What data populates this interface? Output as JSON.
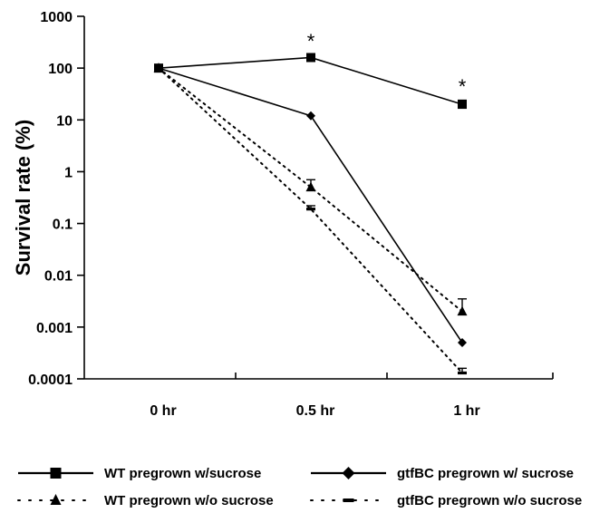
{
  "chart_data": {
    "type": "line",
    "ylabel": "Survival rate (%)",
    "xlabel": "",
    "yscale": "log",
    "ylim": [
      0.0001,
      1000
    ],
    "y_ticks": [
      1000,
      100,
      10,
      1,
      0.1,
      0.01,
      0.001,
      0.0001
    ],
    "y_tick_labels": [
      "1000",
      "100",
      "10",
      "1",
      "0.1",
      "0.01",
      "0.001",
      "0.0001"
    ],
    "categories": [
      "0 hr",
      "0.5 hr",
      "1 hr"
    ],
    "grid": false,
    "legend_position": "bottom",
    "series": [
      {
        "name": "WT pregrown w/sucrose",
        "values": [
          100,
          160,
          20
        ],
        "err_upper": [
          null,
          190,
          24
        ],
        "marker": "square",
        "line": "solid",
        "color": "#000000"
      },
      {
        "name": "gtfBC pregrown w/ sucrose",
        "values": [
          100,
          12,
          0.0005
        ],
        "err_upper": [
          null,
          null,
          null
        ],
        "marker": "diamond",
        "line": "solid",
        "color": "#000000"
      },
      {
        "name": "WT pregrown w/o sucrose",
        "values": [
          100,
          0.5,
          0.002
        ],
        "err_upper": [
          null,
          0.7,
          0.0035
        ],
        "marker": "triangle",
        "line": "dotted",
        "color": "#000000"
      },
      {
        "name": "gtfBC pregrown w/o sucrose",
        "values": [
          100,
          0.19,
          0.00013
        ],
        "err_upper": [
          null,
          0.22,
          0.00016
        ],
        "marker": "dash",
        "line": "dotted",
        "color": "#000000"
      }
    ],
    "annotations": [
      {
        "text": "*",
        "category": "0.5 hr",
        "y": 340
      },
      {
        "text": "*",
        "category": "1 hr",
        "y": 45
      }
    ]
  }
}
